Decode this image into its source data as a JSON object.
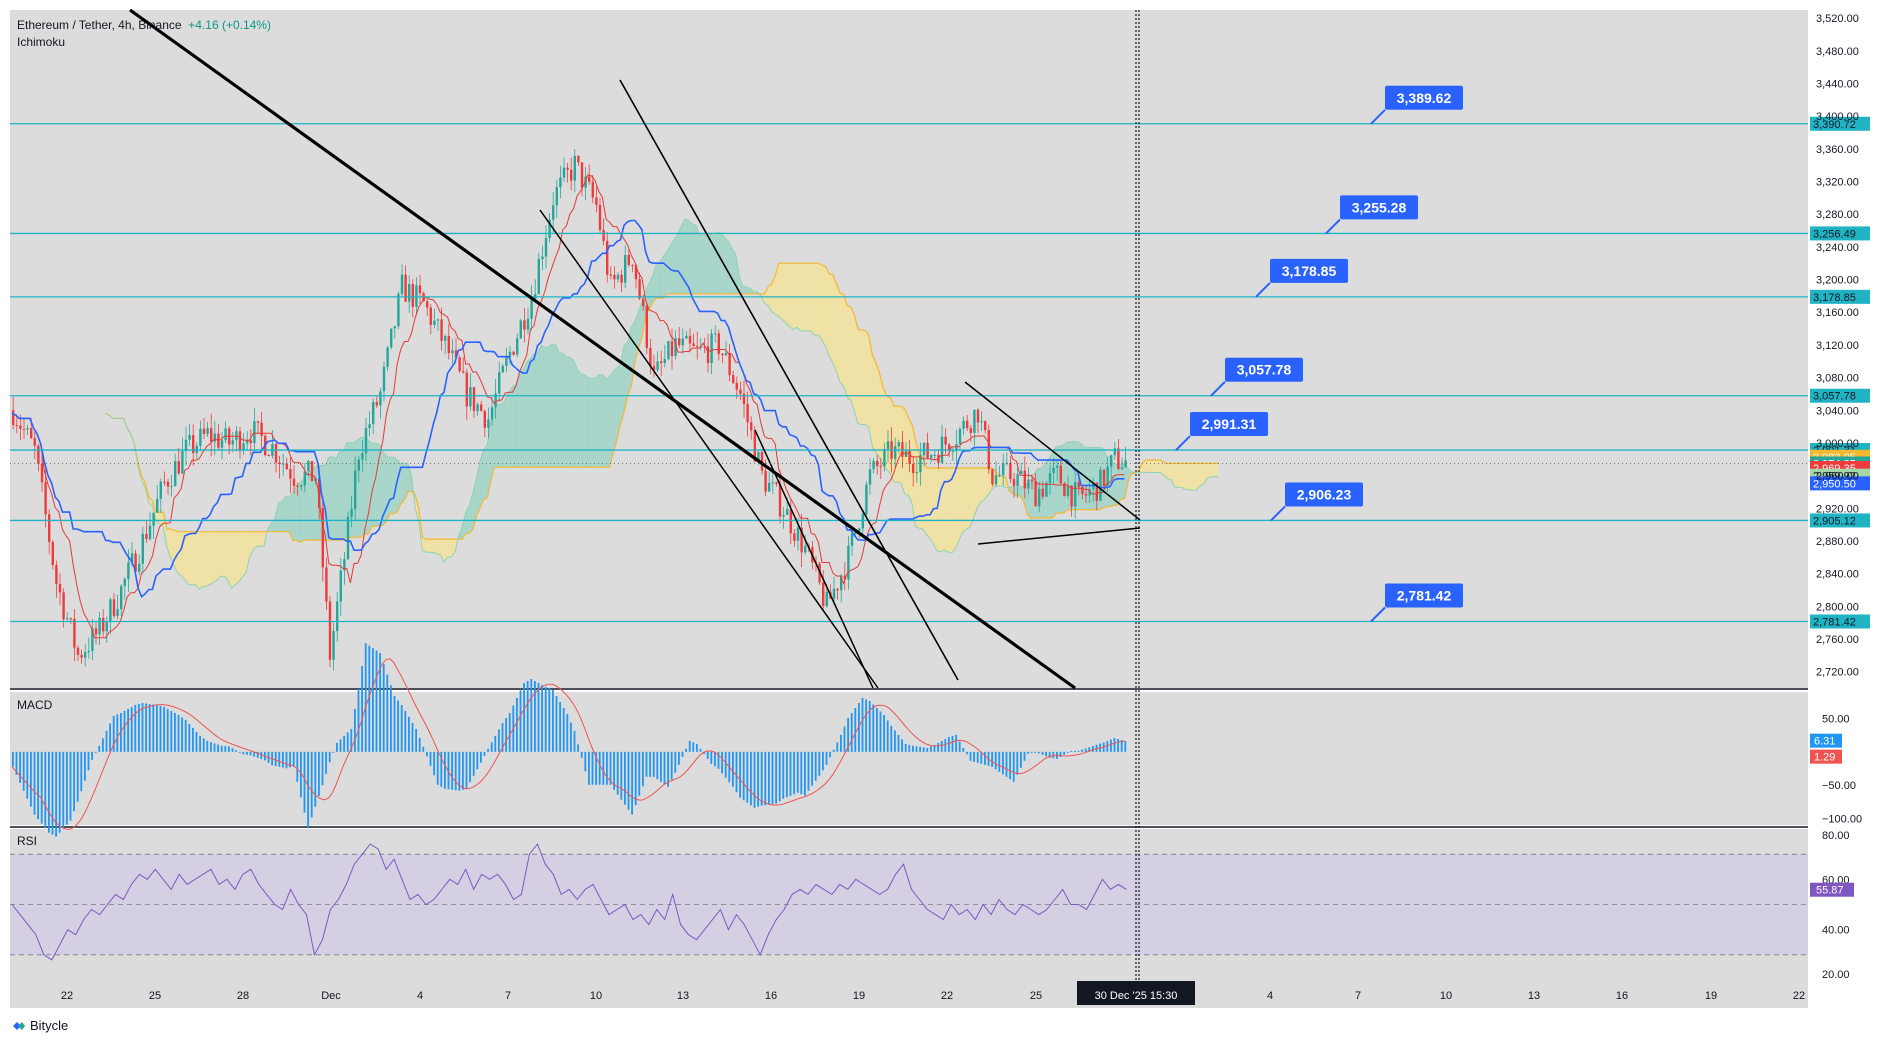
{
  "header": {
    "symbol": "Ethereum / Tether",
    "interval": "4h",
    "exchange": "Binance",
    "change": "+4.16 (+0.14%)",
    "indicator": "Ichimoku"
  },
  "footer": {
    "brand": "Bitycle"
  },
  "colors": {
    "bg": "#dcdcdc",
    "up": "#26a69a",
    "down": "#ef3b3b",
    "level_line": "#1fb3c4",
    "label_blue": "#2962ff",
    "tenkan": "#2962ff",
    "kijun": "#e53935",
    "cloud_bull": "#9fd3c7",
    "cloud_bear": "#f3e29a",
    "span_b": "#f5b82e",
    "macd_line": "#2196f3",
    "signal_line": "#ef5350",
    "rsi_line": "#7e57c2"
  },
  "chart_data": [
    {
      "type": "candlestick",
      "title": "Ethereum / Tether, 4h, Binance",
      "indicator": "Ichimoku",
      "ylim": [
        2700,
        3530
      ],
      "y_ticks": [
        "3,520.00",
        "3,480.00",
        "3,440.00",
        "3,400.00",
        "3,360.00",
        "3,320.00",
        "3,280.00",
        "3,240.00",
        "3,200.00",
        "3,160.00",
        "3,120.00",
        "3,080.00",
        "3,040.00",
        "3,000.00",
        "2,960.00",
        "2,920.00",
        "2,880.00",
        "2,840.00",
        "2,800.00",
        "2,760.00",
        "2,720.00"
      ],
      "x_ticks": [
        "22",
        "25",
        "28",
        "Dec",
        "4",
        "7",
        "10",
        "13",
        "16",
        "19",
        "22",
        "25",
        "4",
        "7",
        "10",
        "13",
        "16",
        "19",
        "22"
      ],
      "cursor_label": "30 Dec '25   15:30",
      "close_path": [
        [
          0,
          3040
        ],
        [
          6,
          2990
        ],
        [
          12,
          2830
        ],
        [
          18,
          2740
        ],
        [
          24,
          2770
        ],
        [
          30,
          2820
        ],
        [
          36,
          2880
        ],
        [
          42,
          2950
        ],
        [
          48,
          2990
        ],
        [
          54,
          3010
        ],
        [
          60,
          3000
        ],
        [
          66,
          3015
        ],
        [
          72,
          2995
        ],
        [
          78,
          2960
        ],
        [
          84,
          2960
        ],
        [
          88,
          2740
        ],
        [
          92,
          2860
        ],
        [
          96,
          2990
        ],
        [
          102,
          3060
        ],
        [
          108,
          3190
        ],
        [
          114,
          3170
        ],
        [
          120,
          3120
        ],
        [
          126,
          3060
        ],
        [
          132,
          3030
        ],
        [
          138,
          3110
        ],
        [
          144,
          3180
        ],
        [
          150,
          3300
        ],
        [
          156,
          3340
        ],
        [
          162,
          3290
        ],
        [
          166,
          3190
        ],
        [
          172,
          3230
        ],
        [
          178,
          3080
        ],
        [
          184,
          3120
        ],
        [
          190,
          3110
        ],
        [
          196,
          3120
        ],
        [
          202,
          3060
        ],
        [
          208,
          2960
        ],
        [
          214,
          2920
        ],
        [
          220,
          2870
        ],
        [
          226,
          2800
        ],
        [
          232,
          2860
        ],
        [
          238,
          2960
        ],
        [
          244,
          2990
        ],
        [
          250,
          2980
        ],
        [
          256,
          2990
        ],
        [
          262,
          3010
        ],
        [
          268,
          3040
        ],
        [
          272,
          2960
        ],
        [
          278,
          2960
        ],
        [
          284,
          2940
        ],
        [
          290,
          2960
        ],
        [
          296,
          2930
        ],
        [
          302,
          2950
        ],
        [
          306,
          2980
        ],
        [
          310,
          2975
        ]
      ],
      "horizontal_levels": [
        {
          "value": 3390.72,
          "axis_label": "3,390.72",
          "callout": "3,389.62"
        },
        {
          "value": 3256.49,
          "axis_label": "3,256.49",
          "callout": "3,255.28"
        },
        {
          "value": 3178.85,
          "axis_label": "3,178.85",
          "callout": "3,178.85"
        },
        {
          "value": 3057.78,
          "axis_label": "3,057.78",
          "callout": "3,057.78"
        },
        {
          "value": 2991.31,
          "axis_label": "2,991.31",
          "callout": "2,991.31"
        },
        {
          "value": 2905.12,
          "axis_label": "2,905.12",
          "callout": "2,906.23"
        },
        {
          "value": 2781.42,
          "axis_label": "2,781.42",
          "callout": "2,781.42"
        }
      ],
      "axis_price_labels": [
        {
          "value": 2983.05,
          "text": "2,983.05",
          "color": "#f5b82e"
        },
        {
          "value": 2974.85,
          "text": "2,974.85",
          "color": "#26a69a"
        },
        {
          "value": 2969.35,
          "text": "2,969.35",
          "color": "#ef3b3b"
        },
        {
          "value": 2959.92,
          "text": "2,959.92",
          "color": "#a5d6a7"
        },
        {
          "value": 2950.5,
          "text": "2,950.50",
          "color": "#2962ff"
        }
      ]
    },
    {
      "type": "histogram",
      "title": "MACD",
      "ylim": [
        -110,
        90
      ],
      "y_ticks": [
        "50.00",
        "−50.00",
        "−100.00"
      ],
      "last_values": [
        {
          "text": "6.31",
          "color": "#2196f3"
        },
        {
          "text": "1.29",
          "color": "#ef5350"
        }
      ]
    },
    {
      "type": "line",
      "title": "RSI",
      "ylim": [
        20,
        80
      ],
      "y_ticks": [
        "80.00",
        "60.00",
        "40.00",
        "20.00"
      ],
      "bands": [
        30,
        50,
        70
      ],
      "last_value": "55.87",
      "values": [
        50,
        46,
        42,
        38,
        30,
        28,
        34,
        40,
        38,
        44,
        48,
        46,
        50,
        54,
        52,
        58,
        62,
        60,
        64,
        60,
        56,
        62,
        58,
        60,
        62,
        64,
        58,
        60,
        56,
        62,
        64,
        58,
        54,
        50,
        48,
        56,
        50,
        46,
        30,
        36,
        48,
        52,
        58,
        66,
        70,
        74,
        72,
        64,
        68,
        60,
        52,
        54,
        50,
        52,
        56,
        60,
        58,
        64,
        56,
        62,
        60,
        62,
        58,
        52,
        54,
        70,
        74,
        66,
        62,
        54,
        56,
        52,
        56,
        58,
        52,
        46,
        48,
        50,
        44,
        46,
        42,
        48,
        44,
        54,
        42,
        38,
        36,
        40,
        44,
        48,
        40,
        46,
        42,
        36,
        30,
        38,
        44,
        48,
        54,
        56,
        54,
        58,
        56,
        54,
        58,
        56,
        60,
        58,
        56,
        54,
        56,
        62,
        66,
        56,
        52,
        48,
        46,
        44,
        50,
        46,
        48,
        44,
        50,
        46,
        52,
        48,
        46,
        50,
        48,
        46,
        48,
        52,
        56,
        50,
        50,
        48,
        54,
        60,
        56,
        58,
        56
      ]
    }
  ]
}
